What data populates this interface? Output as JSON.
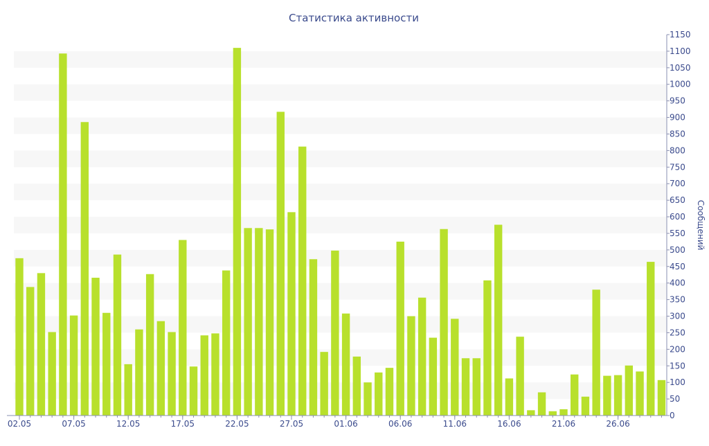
{
  "chart_data": {
    "type": "bar",
    "title": "Статистика активности",
    "xlabel": "",
    "ylabel": "Сообщений",
    "y_axis_position": "right",
    "ylim": [
      0,
      1150
    ],
    "y_ticks": [
      0,
      50,
      100,
      150,
      200,
      250,
      300,
      350,
      400,
      450,
      500,
      550,
      600,
      650,
      700,
      750,
      800,
      850,
      900,
      950,
      1000,
      1050,
      1100,
      1150
    ],
    "grid": "alternating horizontal bands",
    "bar_color": "#b8e02c",
    "text_color": "#3a4a8c",
    "band_color": "#f7f7f7",
    "x_tick_labels": [
      "02.05",
      "07.05",
      "12.05",
      "17.05",
      "22.05",
      "27.05",
      "01.06",
      "06.06",
      "11.06",
      "16.06",
      "21.06",
      "26.06"
    ],
    "values": [
      475,
      388,
      430,
      252,
      1093,
      302,
      886,
      416,
      310,
      486,
      155,
      260,
      427,
      285,
      252,
      530,
      148,
      242,
      248,
      438,
      1110,
      566,
      566,
      562,
      917,
      614,
      812,
      472,
      192,
      498,
      308,
      178,
      100,
      130,
      144,
      525,
      300,
      356,
      235,
      563,
      292,
      173,
      173,
      408,
      576,
      112,
      238,
      16,
      70,
      13,
      19,
      124,
      57,
      380,
      120,
      122,
      151,
      133,
      464,
      107
    ]
  }
}
